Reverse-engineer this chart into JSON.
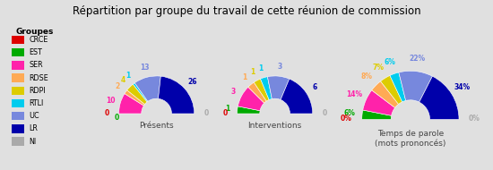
{
  "title": "Répartition par groupe du travail de cette réunion de commission",
  "background_color": "#e0e0e0",
  "legend_bg": "#f5f5f5",
  "groups": [
    "CRCE",
    "EST",
    "SER",
    "RDSE",
    "RDPI",
    "RTLI",
    "UC",
    "LR",
    "NI"
  ],
  "colors": [
    "#dd0000",
    "#00aa00",
    "#ff22aa",
    "#ffaa55",
    "#ddcc00",
    "#00ccee",
    "#7788dd",
    "#0000aa",
    "#aaaaaa"
  ],
  "legend_title": "Groupes",
  "charts": [
    {
      "title": "Présents",
      "values": [
        0,
        0,
        10,
        2,
        4,
        1,
        13,
        26,
        0
      ],
      "labels": [
        "0",
        "0",
        "10",
        "2",
        "4",
        "1",
        "13",
        "26",
        "0"
      ]
    },
    {
      "title": "Interventions",
      "values": [
        0,
        1,
        3,
        1,
        1,
        1,
        3,
        6,
        0
      ],
      "labels": [
        "0",
        "1",
        "3",
        "1",
        "1",
        "1",
        "3",
        "6",
        "0"
      ]
    },
    {
      "title": "Temps de parole\n(mots prononcés)",
      "values": [
        0,
        6,
        14,
        8,
        7,
        6,
        22,
        34,
        0
      ],
      "labels": [
        "0%",
        "6%",
        "14%",
        "8%",
        "7%",
        "6%",
        "22%",
        "34%",
        "0%"
      ]
    }
  ]
}
